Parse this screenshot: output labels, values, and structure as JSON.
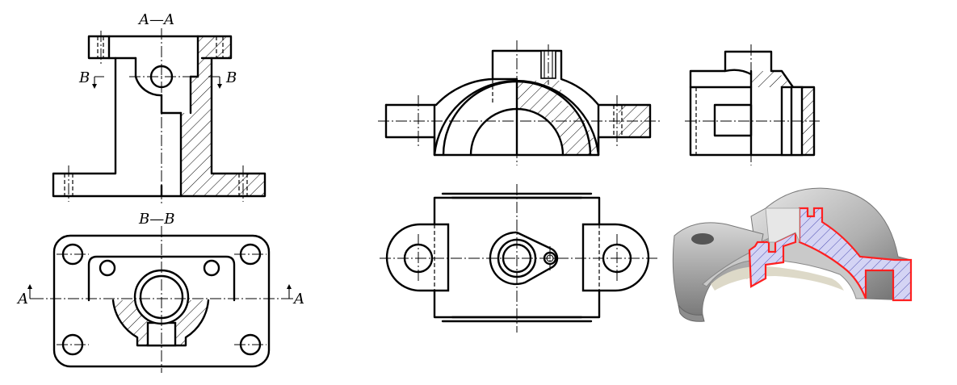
{
  "labels": {
    "section_aa": "A—A",
    "section_bb": "B—B",
    "cut_b_left": "B",
    "cut_b_right": "B",
    "cut_a_left": "A",
    "cut_a_right": "A"
  },
  "colors": {
    "line": "#000000",
    "section_outline": "#ff2020",
    "section_fill": "#c8c8f0",
    "model_light": "#d9d9d9",
    "model_dark": "#8a8a8a"
  }
}
